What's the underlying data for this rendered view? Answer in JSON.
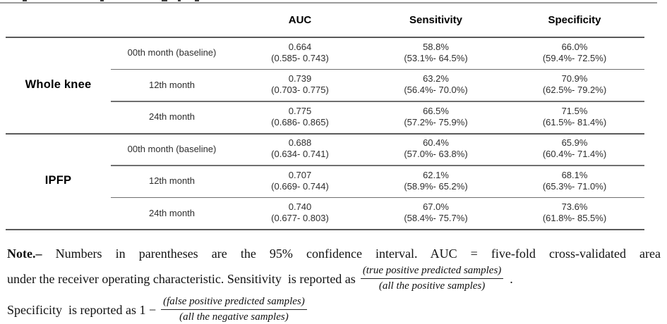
{
  "table": {
    "headers": {
      "auc": "AUC",
      "sensitivity": "Sensitivity",
      "specificity": "Specificity"
    },
    "groups": [
      {
        "label": "Whole knee",
        "rows": [
          {
            "time": "00th month (baseline)",
            "auc": "0.664",
            "auc_ci": "(0.585- 0.743)",
            "sens": "58.8%",
            "sens_ci": "(53.1%- 64.5%)",
            "spec": "66.0%",
            "spec_ci": "(59.4%- 72.5%)"
          },
          {
            "time": "12th month",
            "auc": "0.739",
            "auc_ci": "(0.703- 0.775)",
            "sens": "63.2%",
            "sens_ci": "(56.4%- 70.0%)",
            "spec": "70.9%",
            "spec_ci": "(62.5%- 79.2%)"
          },
          {
            "time": "24th month",
            "auc": "0.775",
            "auc_ci": "(0.686- 0.865)",
            "sens": "66.5%",
            "sens_ci": "(57.2%- 75.9%)",
            "spec": "71.5%",
            "spec_ci": "(61.5%- 81.4%)"
          }
        ]
      },
      {
        "label": "IPFP",
        "rows": [
          {
            "time": "00th month (baseline)",
            "auc": "0.688",
            "auc_ci": "(0.634- 0.741)",
            "sens": "60.4%",
            "sens_ci": "(57.0%- 63.8%)",
            "spec": "65.9%",
            "spec_ci": "(60.4%- 71.4%)"
          },
          {
            "time": "12th month",
            "auc": "0.707",
            "auc_ci": "(0.669- 0.744)",
            "sens": "62.1%",
            "sens_ci": "(58.9%- 65.2%)",
            "spec": "68.1%",
            "spec_ci": "(65.3%- 71.0%)"
          },
          {
            "time": "24th month",
            "auc": "0.740",
            "auc_ci": "(0.677- 0.803)",
            "sens": "67.0%",
            "sens_ci": "(58.4%- 75.7%)",
            "spec": "73.6%",
            "spec_ci": "(61.8%- 85.5%)"
          }
        ]
      }
    ]
  },
  "note": {
    "lead": "Note.–",
    "line1_rest": " Numbers in parentheses are the 95% confidence interval. AUC = five-fold cross-validated area",
    "line2_text": "under the receiver operating characteristic. Sensitivity  is reported as",
    "frac1": {
      "num": "(true positive predicted samples)",
      "den": "(all the positive samples)"
    },
    "after_frac1": ".",
    "line3_text": "Specificity  is reported as 1 −",
    "frac2": {
      "num": "(false positive predicted samples)",
      "den": "(all the negative samples)"
    }
  },
  "colors": {
    "rule_dark": "#5a5a5a",
    "rule_sub": "#6f6f6f",
    "rule_top_gray": "#9a9a9a"
  }
}
